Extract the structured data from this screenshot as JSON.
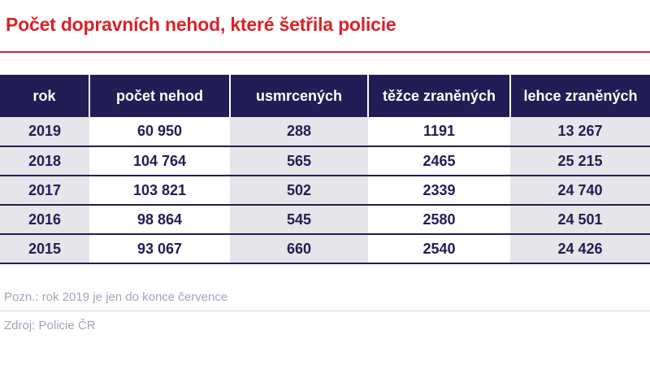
{
  "title": "Počet dopravních nehod, které šetřila policie",
  "colors": {
    "accent_red": "#d9232a",
    "navy": "#221d54",
    "col_gray": "#e6e5ea",
    "footer_text": "#a3a2bd",
    "footer_line": "#d9d8e3"
  },
  "table": {
    "headers": [
      "rok",
      "počet nehod",
      "usmrcených",
      "těžce zraněných",
      "lehce zraněných"
    ],
    "rows": [
      [
        "2019",
        "60 950",
        "288",
        "1191",
        "13 267"
      ],
      [
        "2018",
        "104 764",
        "565",
        "2465",
        "25 215"
      ],
      [
        "2017",
        "103 821",
        "502",
        "2339",
        "24 740"
      ],
      [
        "2016",
        "98 864",
        "545",
        "2580",
        "24 501"
      ],
      [
        "2015",
        "93 067",
        "660",
        "2540",
        "24 426"
      ]
    ]
  },
  "footer": {
    "note": "Pozn.: rok 2019 je jen do konce července",
    "source": "Zdroj: Policie ČR"
  },
  "chart_data": {
    "type": "table",
    "title": "Počet dopravních nehod, které šetřila policie",
    "columns": [
      "rok",
      "počet nehod",
      "usmrcených",
      "těžce zraněných",
      "lehce zraněných"
    ],
    "rows": [
      [
        2019,
        60950,
        288,
        1191,
        13267
      ],
      [
        2018,
        104764,
        565,
        2465,
        25215
      ],
      [
        2017,
        103821,
        502,
        2339,
        24740
      ],
      [
        2016,
        98864,
        545,
        2580,
        24501
      ],
      [
        2015,
        93067,
        660,
        2540,
        24426
      ]
    ],
    "note": "Pozn.: rok 2019 je jen do konce července",
    "source": "Zdroj: Policie ČR"
  }
}
